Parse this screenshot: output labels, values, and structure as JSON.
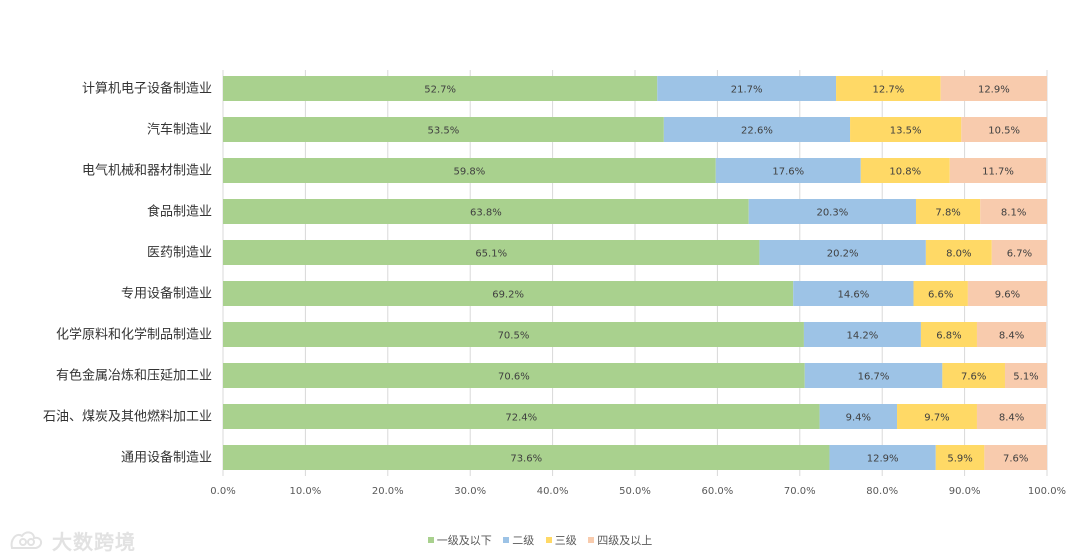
{
  "chart_data": {
    "type": "bar",
    "orientation": "horizontal",
    "stacked": true,
    "categories": [
      "计算机电子设备制造业",
      "汽车制造业",
      "电气机械和器材制造业",
      "食品制造业",
      "医药制造业",
      "专用设备制造业",
      "化学原料和化学制品制造业",
      "有色金属冶炼和压延加工业",
      "石油、煤炭及其他燃料加工业",
      "通用设备制造业"
    ],
    "series": [
      {
        "name": "一级及以下",
        "color": "#a9d18e",
        "values": [
          52.7,
          53.5,
          59.8,
          63.8,
          65.1,
          69.2,
          70.5,
          70.6,
          72.4,
          73.6
        ],
        "labels": [
          "52.7%",
          "53.5%",
          "59.8%",
          "63.8%",
          "65.1%",
          "69.2%",
          "70.5%",
          "70.6%",
          "72.4%",
          "73.6%"
        ]
      },
      {
        "name": "二级",
        "color": "#9dc3e6",
        "values": [
          21.7,
          22.6,
          17.6,
          20.3,
          20.2,
          14.6,
          14.2,
          16.7,
          9.4,
          12.9
        ],
        "labels": [
          "21.7%",
          "22.6%",
          "17.6%",
          "20.3%",
          "20.2%",
          "14.6%",
          "14.2%",
          "16.7%",
          "9.4%",
          "12.9%"
        ]
      },
      {
        "name": "三级",
        "color": "#ffd966",
        "values": [
          12.7,
          13.5,
          10.8,
          7.8,
          8.0,
          6.6,
          6.8,
          7.6,
          9.7,
          5.9
        ],
        "labels": [
          "12.7%",
          "13.5%",
          "10.8%",
          "7.8%",
          "8.0%",
          "6.6%",
          "6.8%",
          "7.6%",
          "9.7%",
          "5.9%"
        ]
      },
      {
        "name": "四级及以上",
        "color": "#f8cbad",
        "values": [
          12.9,
          10.5,
          11.7,
          8.1,
          6.7,
          9.6,
          8.4,
          5.1,
          8.4,
          7.6
        ],
        "labels": [
          "12.9%",
          "10.5%",
          "11.7%",
          "8.1%",
          "6.7%",
          "9.6%",
          "8.4%",
          "5.1%",
          "8.4%",
          "7.6%"
        ]
      }
    ],
    "xlim": [
      0,
      100
    ],
    "xticks": [
      "0.0%",
      "10.0%",
      "20.0%",
      "30.0%",
      "40.0%",
      "50.0%",
      "60.0%",
      "70.0%",
      "80.0%",
      "90.0%",
      "100.0%"
    ],
    "grid": true,
    "legend_position": "bottom"
  },
  "watermark": {
    "text": "大数跨境"
  }
}
